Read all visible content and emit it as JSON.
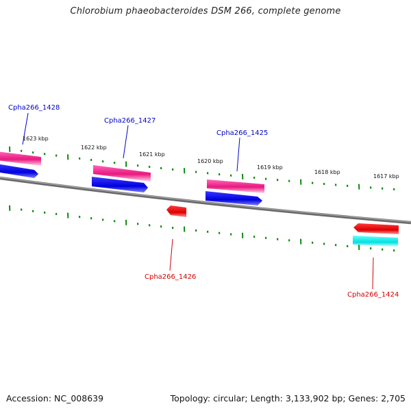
{
  "title": "Chlorobium phaeobacteroides DSM 266, complete genome",
  "accession": "Accession: NC_008639",
  "topology": "Topology: circular; Length: 3,133,902 bp; Genes: 2,705",
  "colors": {
    "backbone": "#808080",
    "tick": "#0a8a0a",
    "forward_label": "#0000c8",
    "reverse_label": "#d00000",
    "pink": "#ff3399",
    "blue": "#0000ee",
    "red": "#ee0000",
    "cyan": "#00eeee"
  },
  "kbp_labels": [
    "1623 kbp",
    "1622 kbp",
    "1621 kbp",
    "1620 kbp",
    "1619 kbp",
    "1618 kbp",
    "1617 kbp"
  ],
  "genes": [
    {
      "label": "Cpha266_1428",
      "strand": "forward"
    },
    {
      "label": "Cpha266_1427",
      "strand": "forward"
    },
    {
      "label": "Cpha266_1426",
      "strand": "reverse"
    },
    {
      "label": "Cpha266_1425",
      "strand": "forward"
    },
    {
      "label": "Cpha266_1424",
      "strand": "reverse"
    }
  ]
}
